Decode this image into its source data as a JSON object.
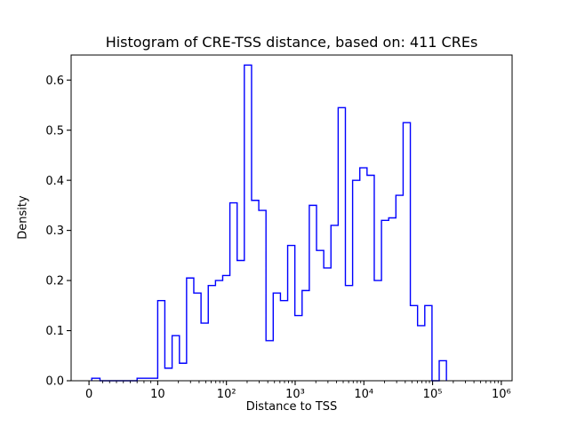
{
  "chart_data": {
    "type": "histogram",
    "title": "Histogram of CRE-TSS distance, based on: 411 CREs",
    "xlabel": "Distance to TSS",
    "ylabel": "Density",
    "n_cres": 411,
    "x_scale": "symlog",
    "line_color": "#0000ff",
    "axis_color": "#000000",
    "background": "#ffffff",
    "ylim": [
      0,
      0.65
    ],
    "y_ticks": [
      {
        "value": 0.0,
        "label": "0.0"
      },
      {
        "value": 0.1,
        "label": "0.1"
      },
      {
        "value": 0.2,
        "label": "0.2"
      },
      {
        "value": 0.3,
        "label": "0.3"
      },
      {
        "value": 0.4,
        "label": "0.4"
      },
      {
        "value": 0.5,
        "label": "0.5"
      },
      {
        "value": 0.6,
        "label": "0.6"
      }
    ],
    "x_ticks": [
      {
        "value": 0,
        "label": "0"
      },
      {
        "value": 10,
        "label": "10"
      },
      {
        "value": 100,
        "label": "10²"
      },
      {
        "value": 1000,
        "label": "10³"
      },
      {
        "value": 10000,
        "label": "10⁴"
      },
      {
        "value": 100000,
        "label": "10⁵"
      },
      {
        "value": 1000000,
        "label": "10⁶"
      }
    ],
    "bin_edges": [
      0.4,
      1.6,
      7,
      10,
      12.7,
      16.2,
      20.7,
      26.3,
      33.5,
      42.7,
      54.4,
      69.3,
      88.2,
      112.3,
      143.1,
      182.2,
      232.1,
      295.6,
      376.5,
      479.5,
      610.7,
      777.8,
      990.6,
      1261.6,
      1606.7,
      2046.3,
      2606.2,
      3319.2,
      4227.3,
      5383.8,
      6856.6,
      8732.3,
      11121,
      14164,
      18038,
      22973,
      29258,
      37262,
      47456,
      60439,
      76974,
      98032,
      124852,
      159010
    ],
    "densities": [
      0.005,
      0,
      0.005,
      0.16,
      0.025,
      0.09,
      0.035,
      0.205,
      0.175,
      0.115,
      0.19,
      0.2,
      0.21,
      0.355,
      0.24,
      0.63,
      0.36,
      0.34,
      0.08,
      0.175,
      0.16,
      0.27,
      0.13,
      0.18,
      0.35,
      0.26,
      0.225,
      0.31,
      0.545,
      0.19,
      0.4,
      0.425,
      0.41,
      0.2,
      0.32,
      0.325,
      0.37,
      0.515,
      0.15,
      0.11,
      0.15,
      0,
      0.04
    ]
  }
}
